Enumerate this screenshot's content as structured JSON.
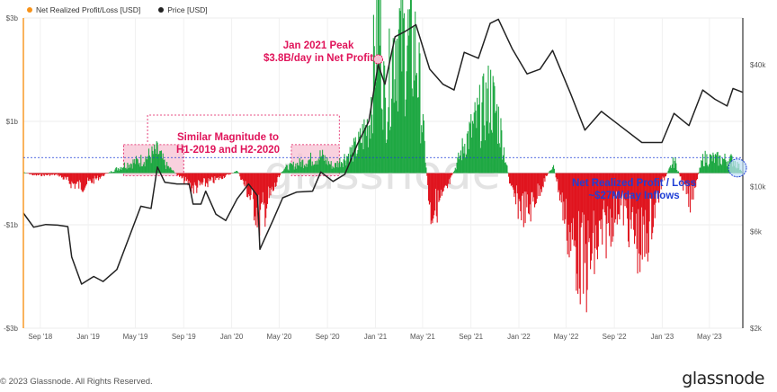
{
  "legend": {
    "items": [
      {
        "label": "Net Realized Profit/Loss [USD]",
        "color": "#f7931a"
      },
      {
        "label": "Price [USD]",
        "color": "#222222"
      }
    ]
  },
  "annotations": {
    "peak_line1": "Jan 2021 Peak",
    "peak_line2": "$3.8B/day in Net Profit",
    "similar_line1": "Similar Magnitude to",
    "similar_line2": "H1-2019 and H2-2020",
    "current_line1": "Net Realized Profit / Loss",
    "current_line2": "~$27M/day Inflows"
  },
  "watermark": "glassnode",
  "footer": {
    "copyright": "© 2023 Glassnode. All Rights Reserved.",
    "brand": "glassnode"
  },
  "colors": {
    "profit": "#1fa843",
    "loss": "#e0141e",
    "price": "#222222",
    "highlight_pink": "#e0145a",
    "highlight_blue": "#1f3fd6",
    "axis_left": "#f7931a"
  },
  "chart_data": {
    "type": "area",
    "x_ticks": [
      "Sep '18",
      "Jan '19",
      "May '19",
      "Sep '19",
      "Jan '20",
      "May '20",
      "Sep '20",
      "Jan '21",
      "May '21",
      "Sep '21",
      "Jan '22",
      "May '22",
      "Sep '22",
      "Jan '23",
      "May '23"
    ],
    "x_range": [
      "2018-07-20",
      "2023-07-25"
    ],
    "y_left": {
      "ticks": [
        "$3b",
        "$1b",
        "-$1b",
        "-$3b"
      ],
      "range": [
        -3.0,
        3.0
      ],
      "unit": "USD"
    },
    "y_right": {
      "ticks": [
        "$40k",
        "$10k",
        "$6k",
        "$2k"
      ],
      "scale": "log",
      "range": [
        2000,
        68000
      ],
      "unit": "USD"
    },
    "grid": true,
    "legend_position": "top-left",
    "series": [
      {
        "name": "Price [USD]",
        "axis": "right",
        "points": [
          [
            "2018-07-20",
            7400
          ],
          [
            "2018-08-15",
            6300
          ],
          [
            "2018-09-15",
            6500
          ],
          [
            "2018-10-15",
            6450
          ],
          [
            "2018-11-10",
            6350
          ],
          [
            "2018-11-20",
            4500
          ],
          [
            "2018-12-15",
            3300
          ],
          [
            "2019-01-15",
            3600
          ],
          [
            "2019-02-08",
            3400
          ],
          [
            "2019-03-15",
            3900
          ],
          [
            "2019-04-05",
            5000
          ],
          [
            "2019-05-15",
            8000
          ],
          [
            "2019-06-10",
            7800
          ],
          [
            "2019-06-26",
            12500
          ],
          [
            "2019-07-15",
            10500
          ],
          [
            "2019-08-15",
            10300
          ],
          [
            "2019-09-15",
            10300
          ],
          [
            "2019-09-25",
            8200
          ],
          [
            "2019-10-15",
            8200
          ],
          [
            "2019-10-27",
            9500
          ],
          [
            "2019-11-22",
            7300
          ],
          [
            "2019-12-17",
            6800
          ],
          [
            "2020-01-15",
            8700
          ],
          [
            "2020-02-13",
            10300
          ],
          [
            "2020-03-07",
            9000
          ],
          [
            "2020-03-13",
            4900
          ],
          [
            "2020-04-15",
            6800
          ],
          [
            "2020-05-10",
            8800
          ],
          [
            "2020-06-15",
            9400
          ],
          [
            "2020-07-25",
            9500
          ],
          [
            "2020-08-15",
            11800
          ],
          [
            "2020-09-15",
            10600
          ],
          [
            "2020-10-15",
            11500
          ],
          [
            "2020-11-15",
            16000
          ],
          [
            "2020-12-15",
            21000
          ],
          [
            "2021-01-08",
            40000
          ],
          [
            "2021-01-25",
            32000
          ],
          [
            "2021-02-20",
            55000
          ],
          [
            "2021-03-15",
            58000
          ],
          [
            "2021-04-14",
            63000
          ],
          [
            "2021-05-19",
            38000
          ],
          [
            "2021-06-22",
            32000
          ],
          [
            "2021-07-20",
            30000
          ],
          [
            "2021-08-15",
            46000
          ],
          [
            "2021-09-20",
            43000
          ],
          [
            "2021-10-20",
            64000
          ],
          [
            "2021-11-10",
            67000
          ],
          [
            "2021-12-15",
            48000
          ],
          [
            "2022-01-22",
            36000
          ],
          [
            "2022-02-24",
            38000
          ],
          [
            "2022-03-28",
            47000
          ],
          [
            "2022-05-12",
            29000
          ],
          [
            "2022-06-18",
            19000
          ],
          [
            "2022-07-30",
            23500
          ],
          [
            "2022-09-15",
            20000
          ],
          [
            "2022-11-10",
            16500
          ],
          [
            "2022-12-31",
            16500
          ],
          [
            "2023-01-31",
            23000
          ],
          [
            "2023-03-10",
            20000
          ],
          [
            "2023-04-14",
            30000
          ],
          [
            "2023-05-15",
            27000
          ],
          [
            "2023-06-15",
            25000
          ],
          [
            "2023-06-30",
            30500
          ],
          [
            "2023-07-25",
            29200
          ]
        ]
      },
      {
        "name": "Net Realized Profit/Loss [USD]",
        "axis": "left",
        "unit": "billions USD/day",
        "points": [
          [
            "2018-07-20",
            0.02
          ],
          [
            "2018-08-15",
            -0.05
          ],
          [
            "2018-10-15",
            -0.04
          ],
          [
            "2018-11-20",
            -0.25
          ],
          [
            "2018-12-15",
            -0.3
          ],
          [
            "2019-02-08",
            -0.05
          ],
          [
            "2019-04-05",
            0.2
          ],
          [
            "2019-05-15",
            0.3
          ],
          [
            "2019-06-26",
            0.5
          ],
          [
            "2019-07-15",
            0.2
          ],
          [
            "2019-09-25",
            -0.35
          ],
          [
            "2019-11-22",
            -0.15
          ],
          [
            "2020-01-15",
            0.05
          ],
          [
            "2020-03-13",
            -1.05
          ],
          [
            "2020-05-10",
            0.1
          ],
          [
            "2020-08-15",
            0.4
          ],
          [
            "2020-09-15",
            0.15
          ],
          [
            "2020-11-15",
            0.6
          ],
          [
            "2020-12-15",
            1.2
          ],
          [
            "2021-01-08",
            3.8
          ],
          [
            "2021-01-25",
            1.5
          ],
          [
            "2021-02-20",
            3.2
          ],
          [
            "2021-04-14",
            2.8
          ],
          [
            "2021-05-19",
            -0.9
          ],
          [
            "2021-06-22",
            -0.6
          ],
          [
            "2021-08-15",
            0.7
          ],
          [
            "2021-10-20",
            1.8
          ],
          [
            "2021-11-10",
            1.2
          ],
          [
            "2021-12-15",
            -0.6
          ],
          [
            "2022-01-22",
            -0.9
          ],
          [
            "2022-03-28",
            0.2
          ],
          [
            "2022-05-12",
            -1.6
          ],
          [
            "2022-06-18",
            -2.2
          ],
          [
            "2022-09-15",
            -0.7
          ],
          [
            "2022-11-10",
            -1.8
          ],
          [
            "2022-12-31",
            -0.2
          ],
          [
            "2023-01-31",
            0.3
          ],
          [
            "2023-03-10",
            -0.7
          ],
          [
            "2023-04-14",
            0.35
          ],
          [
            "2023-06-30",
            0.3
          ],
          [
            "2023-07-25",
            0.027
          ]
        ]
      }
    ],
    "annotations": [
      {
        "text": "Jan 2021 Peak $3.8B/day in Net Profit",
        "x": "2021-01-08"
      },
      {
        "text": "Similar Magnitude to H1-2019 and H2-2020",
        "x_range": [
          "2019-04-01",
          "2020-10-01"
        ]
      },
      {
        "text": "Net Realized Profit / Loss ~$27M/day Inflows",
        "x": "2023-07-25"
      }
    ]
  }
}
